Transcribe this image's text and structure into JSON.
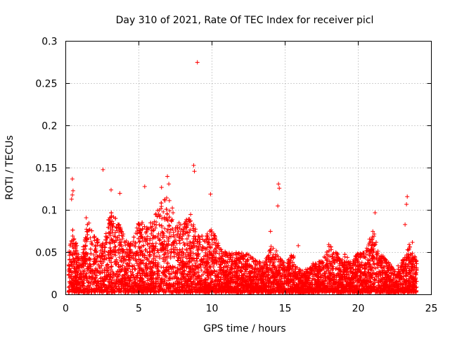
{
  "chart_data": {
    "type": "scatter",
    "title": "Day 310 of 2021, Rate Of TEC Index for receiver picl",
    "xlabel": "GPS time / hours",
    "ylabel": "ROTI / TECUs",
    "xlim": [
      0,
      25
    ],
    "ylim": [
      0,
      0.3
    ],
    "x_ticks": [
      0,
      5,
      10,
      15,
      20,
      25
    ],
    "x_tick_labels": [
      "0",
      "5",
      "10",
      "15",
      "20",
      "25"
    ],
    "y_ticks": [
      0,
      0.05,
      0.1,
      0.15,
      0.2,
      0.25,
      0.3
    ],
    "y_tick_labels": [
      "0",
      "0.05",
      "0.1",
      "0.15",
      "0.2",
      "0.25",
      "0.3"
    ],
    "grid": true,
    "marker": "+",
    "series": [
      {
        "name": "ROTI",
        "color": "#ff0000",
        "note": "dense field of roughly 10000 '+' markers spanning 0.2-24 h, mostly 0-0.05 TECU/s; envelope below gives the approximate upper bound of the dense cloud by hour",
        "envelope": {
          "x": [
            0.2,
            0.5,
            1,
            1.5,
            2,
            2.5,
            3,
            3.5,
            4,
            4.5,
            5,
            5.5,
            6,
            6.5,
            7,
            7.5,
            8,
            8.5,
            9,
            9.5,
            10,
            10.5,
            11,
            11.5,
            12,
            12.5,
            13,
            13.5,
            14,
            14.5,
            15,
            15.5,
            16,
            16.5,
            17,
            17.5,
            18,
            18.5,
            19,
            19.5,
            20,
            20.5,
            21,
            21.5,
            22,
            22.5,
            23,
            23.5,
            24
          ],
          "y": [
            0.05,
            0.08,
            0.04,
            0.09,
            0.07,
            0.06,
            0.1,
            0.09,
            0.07,
            0.06,
            0.09,
            0.08,
            0.09,
            0.11,
            0.12,
            0.09,
            0.08,
            0.1,
            0.07,
            0.07,
            0.08,
            0.06,
            0.05,
            0.05,
            0.05,
            0.05,
            0.04,
            0.04,
            0.06,
            0.05,
            0.04,
            0.05,
            0.03,
            0.03,
            0.04,
            0.04,
            0.06,
            0.05,
            0.05,
            0.04,
            0.05,
            0.05,
            0.08,
            0.05,
            0.04,
            0.03,
            0.04,
            0.06,
            0.04
          ]
        },
        "outliers": [
          {
            "x": 0.45,
            "y": 0.137
          },
          {
            "x": 0.5,
            "y": 0.123
          },
          {
            "x": 0.45,
            "y": 0.118
          },
          {
            "x": 0.4,
            "y": 0.113
          },
          {
            "x": 1.4,
            "y": 0.091
          },
          {
            "x": 2.55,
            "y": 0.148
          },
          {
            "x": 3.1,
            "y": 0.124
          },
          {
            "x": 3.7,
            "y": 0.12
          },
          {
            "x": 5.4,
            "y": 0.128
          },
          {
            "x": 6.55,
            "y": 0.127
          },
          {
            "x": 6.95,
            "y": 0.14
          },
          {
            "x": 7.05,
            "y": 0.131
          },
          {
            "x": 8.75,
            "y": 0.153
          },
          {
            "x": 8.8,
            "y": 0.146
          },
          {
            "x": 9.0,
            "y": 0.275
          },
          {
            "x": 9.9,
            "y": 0.119
          },
          {
            "x": 14.0,
            "y": 0.075
          },
          {
            "x": 14.55,
            "y": 0.131
          },
          {
            "x": 14.6,
            "y": 0.126
          },
          {
            "x": 14.5,
            "y": 0.105
          },
          {
            "x": 15.9,
            "y": 0.058
          },
          {
            "x": 21.15,
            "y": 0.097
          },
          {
            "x": 23.35,
            "y": 0.116
          },
          {
            "x": 23.3,
            "y": 0.107
          },
          {
            "x": 23.2,
            "y": 0.083
          },
          {
            "x": 23.7,
            "y": 0.062
          }
        ]
      }
    ]
  }
}
